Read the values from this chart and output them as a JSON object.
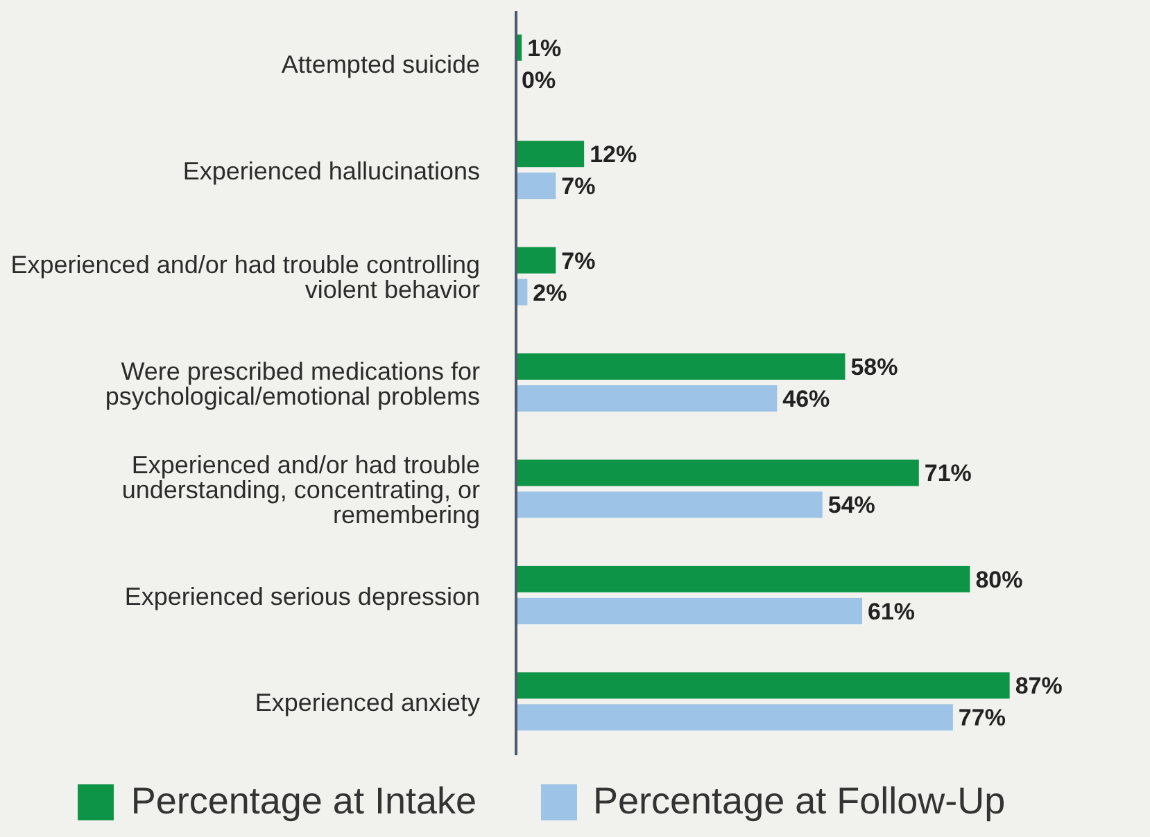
{
  "chart_data": {
    "type": "bar",
    "orientation": "horizontal",
    "categories": [
      "Attempted suicide",
      "Experienced hallucinations",
      "Experienced and/or had trouble controlling violent behavior",
      "Were prescribed medications for psychological/emotional problems",
      "Experienced and/or had trouble understanding, concentrating, or remembering",
      "Experienced serious depression",
      "Experienced anxiety"
    ],
    "series": [
      {
        "name": "Percentage at Intake",
        "color": "#0e9447",
        "values": [
          1,
          12,
          7,
          58,
          71,
          80,
          87
        ],
        "value_labels": [
          "1%",
          "12%",
          "7%",
          "58%",
          "71%",
          "80%",
          "87%"
        ]
      },
      {
        "name": "Percentage at Follow-Up",
        "color": "#9dc3e6",
        "values": [
          0,
          7,
          2,
          46,
          54,
          61,
          77
        ],
        "value_labels": [
          "0%",
          "7%",
          "2%",
          "46%",
          "54%",
          "61%",
          "77%"
        ]
      }
    ],
    "legend": "bottom"
  }
}
